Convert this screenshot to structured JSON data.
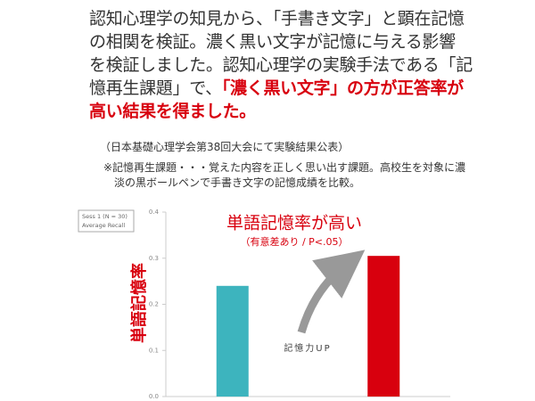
{
  "body": {
    "lines": [
      [
        {
          "text": "認知心理学の知見から、「手書き文字」と顕在記憶",
          "highlight": false
        }
      ],
      [
        {
          "text": "の相関を検証。濃く黒い文字が記憶に与える影響",
          "highlight": false
        }
      ],
      [
        {
          "text": "を検証しました。認知心理学の実験手法である「記",
          "highlight": false
        }
      ],
      [
        {
          "text": "憶再生課題」で、",
          "highlight": false
        },
        {
          "text": "「濃く黒い文字」の方が正答率が",
          "highlight": true
        }
      ],
      [
        {
          "text": "高い結果を得ました。",
          "highlight": true
        }
      ]
    ]
  },
  "source": "（日本基礎心理学会第38回大会にて実験結果公表）",
  "note": [
    "※記憶再生課題・・・覚えた内容を正しく思い出す課題。高校生を対象に濃",
    "淡の黒ボールペンで手書き文字の記憶成績を比較。"
  ],
  "chart_data": {
    "type": "bar",
    "legend": [
      "Sess 1 (N = 30)",
      "Average Recall"
    ],
    "y_label": "単語記憶率",
    "annotation_title": "単語記憶率が高い",
    "annotation_subtitle": "（有意差あり / P<.05）",
    "annotation_arrow": "記憶力UP",
    "categories": [
      null,
      null
    ],
    "values": [
      0.24,
      0.305
    ],
    "colors": [
      "#3db4be",
      "#d8000e"
    ],
    "ylim": [
      0,
      0.4
    ],
    "yticks": [
      {
        "value": 0,
        "label": "0.0"
      },
      0.1,
      0.2,
      0.3,
      0.4
    ]
  }
}
